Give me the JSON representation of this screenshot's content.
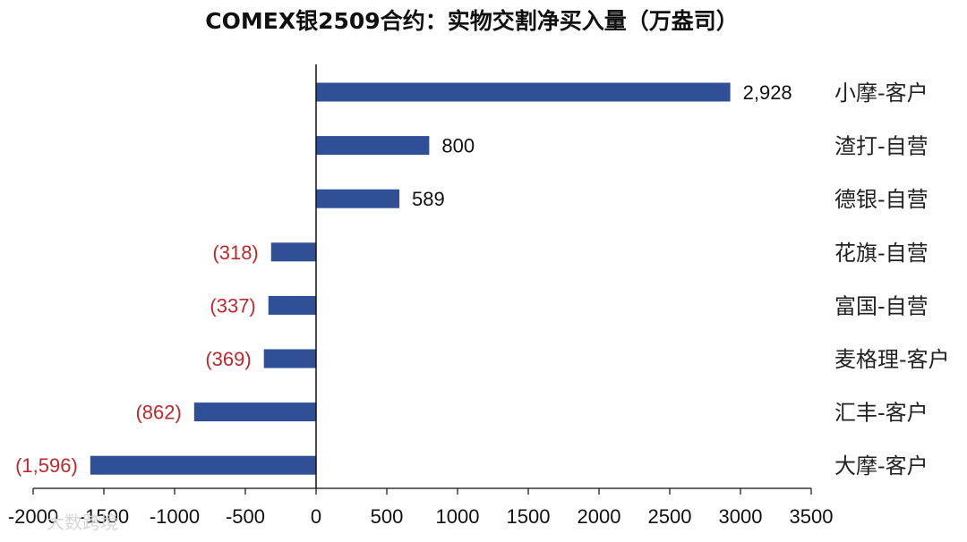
{
  "chart_data": {
    "type": "bar",
    "orientation": "horizontal",
    "title": "COMEX银2509合约：实物交割净买入量（万盎司）",
    "categories": [
      "小摩-客户",
      "渣打-自营",
      "德银-自营",
      "花旗-自营",
      "富国-自营",
      "麦格理-客户",
      "汇丰-客户",
      "大摩-客户"
    ],
    "values": [
      2928,
      800,
      589,
      -318,
      -337,
      -369,
      -862,
      -1596
    ],
    "data_labels": [
      "2,928",
      "800",
      "589",
      "(318)",
      "(337)",
      "(369)",
      "(862)",
      "(1,596)"
    ],
    "xlim": [
      -2000,
      3500
    ],
    "xticks": [
      -2000,
      -1500,
      -1000,
      -500,
      0,
      500,
      1000,
      1500,
      2000,
      2500,
      3000,
      3500
    ],
    "xtick_labels": [
      "-2000",
      "-1500",
      "-1000",
      "-500",
      "0",
      "500",
      "1000",
      "1500",
      "2000",
      "2500",
      "3000",
      "3500"
    ],
    "grid": false,
    "colors": {
      "bar": "#2f4f97",
      "negative_label": "#c0282d",
      "positive_label": "#111111"
    }
  },
  "watermark": "大数跨境"
}
